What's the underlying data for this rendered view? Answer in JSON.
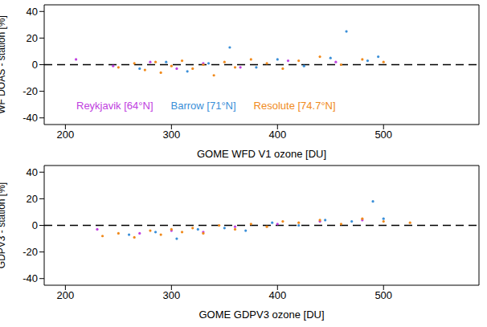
{
  "chart_data": [
    {
      "type": "scatter",
      "xlabel": "GOME WFD V1 ozone [DU]",
      "ylabel": "WF DOAS - station [%]",
      "xlim": [
        180,
        590
      ],
      "xticks": [
        200,
        300,
        400,
        500
      ],
      "ylim": [
        -45,
        45
      ],
      "yticks": [
        -40,
        -20,
        0,
        20,
        40
      ],
      "reference_y": 0,
      "legend": "lower left",
      "marker": "dot",
      "series": [
        {
          "name": "Reykjavik [64°N]",
          "color": "#c040e0",
          "x": [
            210,
            245,
            280,
            305,
            330,
            365,
            410,
            455
          ],
          "values": [
            4,
            -1,
            2,
            -3,
            1,
            -2,
            3,
            2
          ]
        },
        {
          "name": "Barrow [71°N]",
          "color": "#3a8fd8",
          "x": [
            270,
            295,
            315,
            335,
            355,
            380,
            400,
            425,
            450,
            465,
            485,
            495
          ],
          "values": [
            -3,
            2,
            -5,
            1,
            13,
            -2,
            4,
            -1,
            5,
            25,
            3,
            6
          ]
        },
        {
          "name": "Resolute [74.7°N]",
          "color": "#f08a1c",
          "x": [
            250,
            265,
            275,
            285,
            290,
            300,
            310,
            320,
            330,
            340,
            350,
            360,
            375,
            390,
            405,
            420,
            440,
            460,
            480,
            500
          ],
          "values": [
            -2,
            1,
            -4,
            2,
            -6,
            -1,
            3,
            -3,
            0,
            -8,
            2,
            -2,
            4,
            1,
            -3,
            3,
            6,
            0,
            4,
            2
          ]
        }
      ]
    },
    {
      "type": "scatter",
      "xlabel": "GOME GDPV3 ozone [DU]",
      "ylabel": "GDPV3 - station [%]",
      "xlim": [
        180,
        590
      ],
      "xticks": [
        200,
        300,
        400,
        500
      ],
      "ylim": [
        -45,
        45
      ],
      "yticks": [
        -40,
        -20,
        0,
        20,
        40
      ],
      "reference_y": 0,
      "marker": "dot",
      "series": [
        {
          "name": "Reykjavik [64°N]",
          "color": "#c040e0",
          "x": [
            230,
            270,
            300,
            330,
            360,
            400,
            440,
            480
          ],
          "values": [
            -3,
            -6,
            -4,
            -5,
            -1,
            1,
            3,
            4
          ]
        },
        {
          "name": "Barrow [71°N]",
          "color": "#3a8fd8",
          "x": [
            260,
            285,
            305,
            325,
            350,
            370,
            395,
            420,
            445,
            470,
            490,
            500
          ],
          "values": [
            -7,
            -5,
            -10,
            -3,
            -2,
            -4,
            2,
            0,
            4,
            3,
            18,
            5
          ]
        },
        {
          "name": "Resolute [74.7°N]",
          "color": "#f08a1c",
          "x": [
            235,
            250,
            265,
            280,
            290,
            300,
            310,
            320,
            330,
            345,
            360,
            375,
            390,
            405,
            420,
            440,
            460,
            480,
            500,
            525
          ],
          "values": [
            -8,
            -6,
            -9,
            -4,
            -7,
            -3,
            -5,
            -2,
            -6,
            0,
            -3,
            1,
            -1,
            3,
            2,
            4,
            1,
            5,
            3,
            2
          ]
        }
      ]
    }
  ]
}
